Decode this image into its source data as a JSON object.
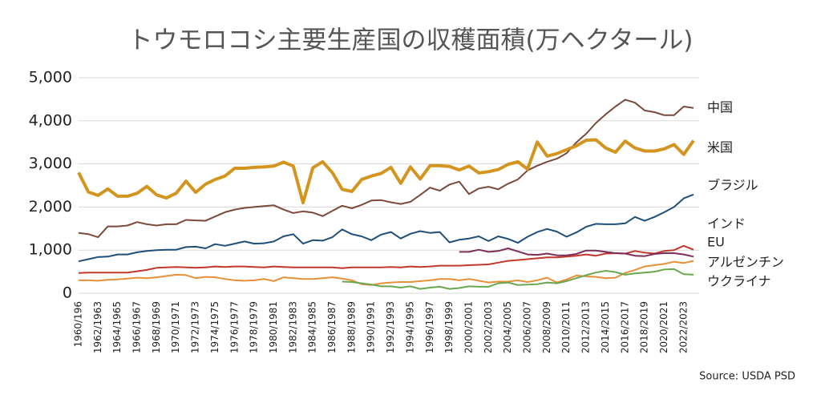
{
  "chart_data": {
    "type": "line",
    "title": "トウモロコシ主要生産国の収穫面積(万ヘクタール)",
    "source": "Source: USDA PSD",
    "categories": [
      "1960/196",
      null,
      "1962/1963",
      null,
      "1964/1965",
      null,
      "1966/1967",
      null,
      "1968/1969",
      null,
      "1970/1971",
      null,
      "1972/1973",
      null,
      "1974/1975",
      null,
      "1976/1977",
      null,
      "1978/1979",
      null,
      "1980/1981",
      null,
      "1982/1983",
      null,
      "1984/1985",
      null,
      "1986/1987",
      null,
      "1988/1989",
      null,
      "1990/1991",
      null,
      "1992/1993",
      null,
      "1994/1995",
      null,
      "1996/1997",
      null,
      "1998/1999",
      null,
      "2000/2001",
      null,
      "2002/2003",
      null,
      "2004/2005",
      null,
      "2006/2007",
      null,
      "2008/2009",
      null,
      "2010/2011",
      null,
      "2012/2013",
      null,
      "2014/2015",
      null,
      "2016/2017",
      null,
      "2018/2019",
      null,
      "2020/2021",
      null,
      "2022/2023",
      null
    ],
    "ylim": [
      0,
      5000
    ],
    "yticks": [
      0,
      {
        "value": 1000,
        "label": "1,000"
      },
      {
        "value": 2000,
        "label": "2,000"
      },
      {
        "value": 3000,
        "label": "3,000"
      },
      {
        "value": 4000,
        "label": "4,000"
      },
      {
        "value": 5000,
        "label": "5,000"
      }
    ],
    "grid": true,
    "series": [
      {
        "name": "中国",
        "color": "#7b4a3a",
        "values": [
          1400,
          1370,
          1300,
          1550,
          1550,
          1570,
          1650,
          1600,
          1570,
          1600,
          1600,
          1700,
          1690,
          1680,
          1780,
          1880,
          1940,
          1980,
          2000,
          2020,
          2040,
          1940,
          1860,
          1900,
          1870,
          1790,
          1910,
          2030,
          1970,
          2050,
          2150,
          2160,
          2110,
          2070,
          2120,
          2280,
          2450,
          2380,
          2520,
          2590,
          2300,
          2430,
          2470,
          2410,
          2540,
          2640,
          2850,
          2960,
          3050,
          3120,
          3250,
          3500,
          3700,
          3950,
          4150,
          4330,
          4490,
          4420,
          4240,
          4200,
          4130,
          4130,
          4330,
          4300
        ]
      },
      {
        "name": "米国",
        "color": "#d4951e",
        "values": [
          2800,
          2350,
          2270,
          2420,
          2250,
          2250,
          2320,
          2480,
          2280,
          2210,
          2320,
          2600,
          2340,
          2530,
          2640,
          2720,
          2900,
          2900,
          2920,
          2930,
          2950,
          3040,
          2950,
          2100,
          2910,
          3050,
          2800,
          2410,
          2360,
          2640,
          2720,
          2780,
          2920,
          2550,
          2930,
          2650,
          2960,
          2960,
          2940,
          2860,
          2950,
          2790,
          2820,
          2870,
          2990,
          3050,
          2880,
          3510,
          3180,
          3240,
          3330,
          3420,
          3550,
          3560,
          3370,
          3270,
          3530,
          3370,
          3300,
          3300,
          3350,
          3450,
          3220,
          3540
        ]
      },
      {
        "name": "ブラジル",
        "color": "#1f4e79",
        "values": [
          740,
          790,
          840,
          850,
          900,
          900,
          950,
          980,
          1000,
          1010,
          1010,
          1070,
          1080,
          1040,
          1140,
          1100,
          1150,
          1200,
          1150,
          1160,
          1200,
          1320,
          1370,
          1150,
          1230,
          1220,
          1300,
          1480,
          1370,
          1320,
          1230,
          1360,
          1420,
          1270,
          1380,
          1440,
          1400,
          1420,
          1180,
          1240,
          1270,
          1320,
          1210,
          1320,
          1260,
          1170,
          1310,
          1420,
          1490,
          1430,
          1310,
          1410,
          1540,
          1610,
          1600,
          1600,
          1620,
          1770,
          1680,
          1770,
          1880,
          2000,
          2200,
          2290
        ]
      },
      {
        "name": "インド",
        "color": "#c0392b",
        "values": [
          470,
          480,
          480,
          480,
          480,
          480,
          510,
          540,
          590,
          600,
          610,
          600,
          590,
          600,
          620,
          610,
          620,
          620,
          610,
          600,
          620,
          610,
          600,
          600,
          600,
          600,
          600,
          580,
          600,
          600,
          600,
          600,
          610,
          600,
          620,
          610,
          620,
          640,
          640,
          640,
          650,
          660,
          670,
          710,
          750,
          770,
          790,
          810,
          830,
          830,
          850,
          870,
          900,
          870,
          920,
          930,
          920,
          980,
          940,
          920,
          980,
          1000,
          1100,
          1010
        ]
      },
      {
        "name": "EU",
        "color": "#7b2e5a",
        "values": [
          null,
          null,
          null,
          null,
          null,
          null,
          null,
          null,
          null,
          null,
          null,
          null,
          null,
          null,
          null,
          null,
          null,
          null,
          null,
          null,
          null,
          null,
          null,
          null,
          null,
          null,
          null,
          null,
          null,
          null,
          null,
          null,
          null,
          null,
          null,
          null,
          null,
          null,
          null,
          960,
          960,
          1010,
          960,
          980,
          1040,
          970,
          900,
          890,
          920,
          880,
          880,
          910,
          990,
          990,
          960,
          930,
          920,
          870,
          860,
          910,
          930,
          930,
          900,
          850
        ]
      },
      {
        "name": "アルゼンチン",
        "color": "#e69138",
        "values": [
          300,
          300,
          290,
          310,
          320,
          340,
          360,
          350,
          370,
          400,
          430,
          420,
          350,
          380,
          370,
          330,
          300,
          290,
          300,
          330,
          280,
          370,
          350,
          330,
          330,
          350,
          370,
          340,
          300,
          210,
          190,
          230,
          250,
          260,
          260,
          280,
          300,
          330,
          330,
          300,
          330,
          290,
          250,
          270,
          270,
          300,
          260,
          300,
          360,
          250,
          320,
          410,
          390,
          380,
          350,
          360,
          470,
          540,
          620,
          650,
          680,
          730,
          700,
          750
        ]
      },
      {
        "name": "ウクライナ",
        "color": "#6aa84f",
        "values": [
          null,
          null,
          null,
          null,
          null,
          null,
          null,
          null,
          null,
          null,
          null,
          null,
          null,
          null,
          null,
          null,
          null,
          null,
          null,
          null,
          null,
          null,
          null,
          null,
          null,
          null,
          null,
          270,
          260,
          230,
          200,
          160,
          160,
          130,
          160,
          100,
          130,
          150,
          100,
          120,
          160,
          150,
          150,
          230,
          250,
          190,
          200,
          210,
          250,
          230,
          280,
          350,
          420,
          480,
          520,
          490,
          430,
          460,
          480,
          500,
          550,
          560,
          440,
          430
        ]
      }
    ]
  }
}
